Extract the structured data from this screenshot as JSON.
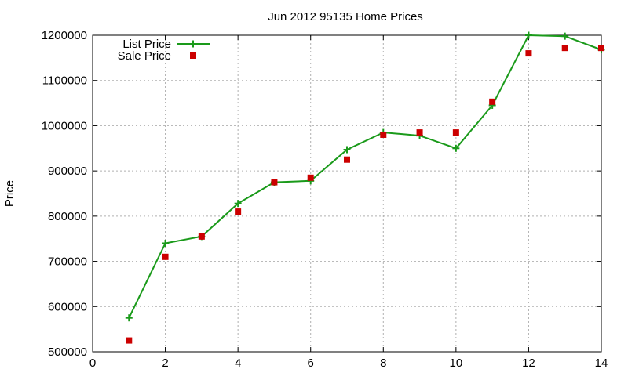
{
  "chart_data": {
    "type": "line",
    "title": "Jun 2012 95135 Home Prices",
    "xlabel": "",
    "ylabel": "Price",
    "xlim": [
      0,
      14
    ],
    "ylim": [
      500000,
      1200000
    ],
    "x_ticks": [
      0,
      2,
      4,
      6,
      8,
      10,
      12,
      14
    ],
    "y_ticks": [
      500000,
      600000,
      700000,
      800000,
      900000,
      1000000,
      1100000,
      1200000
    ],
    "grid": true,
    "legend_position": "top-left",
    "series": [
      {
        "name": "List Price",
        "style": "line-with-plus-markers",
        "color": "#1a9a1a",
        "x": [
          1,
          2,
          3,
          4,
          5,
          6,
          7,
          8,
          9,
          10,
          11,
          12,
          13,
          14
        ],
        "values": [
          575000,
          740000,
          755000,
          828000,
          875000,
          878000,
          947000,
          985000,
          978000,
          950000,
          1045000,
          1200000,
          1198000,
          1168000
        ]
      },
      {
        "name": "Sale Price",
        "style": "square-markers",
        "color": "#cc0000",
        "x": [
          1,
          2,
          3,
          4,
          5,
          6,
          7,
          8,
          9,
          10,
          11,
          12,
          13,
          14
        ],
        "values": [
          525000,
          710000,
          755000,
          810000,
          875000,
          885000,
          925000,
          980000,
          985000,
          985000,
          1053000,
          1160000,
          1172000,
          1172000
        ]
      }
    ]
  }
}
